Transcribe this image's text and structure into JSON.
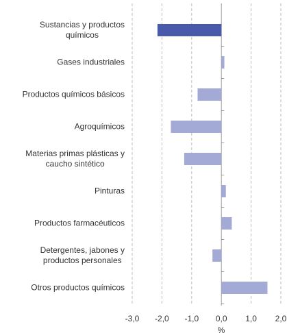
{
  "chart_data": {
    "type": "bar",
    "orientation": "horizontal",
    "categories": [
      "Sustancias y productos\nquímicos",
      "Gases industriales",
      "Productos químicos básicos",
      "Agroquímicos",
      "Materias primas plásticas y\ncaucho sintético",
      "Pinturas",
      "Productos farmacéuticos",
      "Detergentes, jabones y\nproductos personales",
      "Otros productos químicos"
    ],
    "values": [
      -2.15,
      0.1,
      -0.8,
      -1.7,
      -1.25,
      0.15,
      0.35,
      -0.3,
      1.55
    ],
    "colors": [
      "#4a5aab",
      "#a3aad6",
      "#a3aad6",
      "#a3aad6",
      "#a3aad6",
      "#a3aad6",
      "#a3aad6",
      "#a3aad6",
      "#a3aad6"
    ],
    "xlabel": "%",
    "xlim": [
      -3,
      2
    ],
    "xticks": [
      {
        "value": -3,
        "label": "-3,0"
      },
      {
        "value": -2,
        "label": "-2,0"
      },
      {
        "value": -1,
        "label": "-1,0"
      },
      {
        "value": 0,
        "label": "0,0"
      },
      {
        "value": 1,
        "label": "1,0"
      },
      {
        "value": 2,
        "label": "2,0"
      }
    ],
    "grid": true
  }
}
